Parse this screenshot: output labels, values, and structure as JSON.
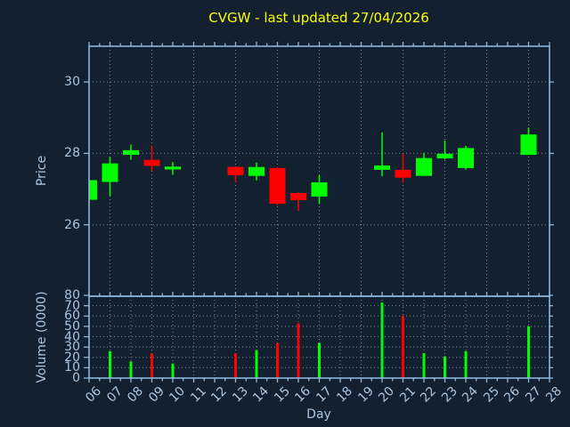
{
  "title": "CVGW - last updated 27/04/2026",
  "xlabel": "Day",
  "x_tick_labels": [
    "06",
    "07",
    "08",
    "09",
    "10",
    "11",
    "12",
    "13",
    "14",
    "15",
    "16",
    "17",
    "18",
    "19",
    "20",
    "21",
    "22",
    "23",
    "24",
    "25",
    "26",
    "27",
    "28"
  ],
  "colors": {
    "background": "#13202f",
    "axis": "#8fb5d8",
    "tick_text": "#a9c6e2",
    "grid": "#c3ced9",
    "up": "#00ff00",
    "down": "#ff0000",
    "title": "#ffff00"
  },
  "chart_data": [
    {
      "type": "candlestick",
      "panel": "price",
      "ylabel": "Price",
      "ylim": [
        24.0,
        31.0
      ],
      "yticks": [
        26,
        28,
        30
      ],
      "grid": "on",
      "x_range_days": [
        6,
        28
      ],
      "x_grid_days": [
        7,
        9,
        11,
        13,
        15,
        17,
        19,
        21,
        23,
        25,
        27
      ],
      "ohlc": [
        {
          "day": "06",
          "open": 26.7,
          "high": 27.25,
          "low": 26.7,
          "close": 27.25,
          "direction": "up"
        },
        {
          "day": "07",
          "open": 27.2,
          "high": 27.9,
          "low": 26.8,
          "close": 27.72,
          "direction": "up"
        },
        {
          "day": "08",
          "open": 27.96,
          "high": 28.25,
          "low": 27.82,
          "close": 28.09,
          "direction": "up"
        },
        {
          "day": "09",
          "open": 27.82,
          "high": 28.22,
          "low": 27.5,
          "close": 27.65,
          "direction": "down"
        },
        {
          "day": "10",
          "open": 27.55,
          "high": 27.76,
          "low": 27.4,
          "close": 27.63,
          "direction": "up"
        },
        {
          "day": "13",
          "open": 27.62,
          "high": 27.64,
          "low": 27.19,
          "close": 27.39,
          "direction": "down"
        },
        {
          "day": "14",
          "open": 27.37,
          "high": 27.74,
          "low": 27.24,
          "close": 27.62,
          "direction": "up"
        },
        {
          "day": "15",
          "open": 27.59,
          "high": 27.62,
          "low": 26.55,
          "close": 26.59,
          "direction": "down"
        },
        {
          "day": "16",
          "open": 26.89,
          "high": 26.91,
          "low": 26.39,
          "close": 26.69,
          "direction": "down"
        },
        {
          "day": "17",
          "open": 26.79,
          "high": 27.39,
          "low": 26.58,
          "close": 27.19,
          "direction": "up"
        },
        {
          "day": "20",
          "open": 27.54,
          "high": 28.59,
          "low": 27.36,
          "close": 27.66,
          "direction": "up"
        },
        {
          "day": "21",
          "open": 27.54,
          "high": 27.99,
          "low": 27.19,
          "close": 27.32,
          "direction": "down"
        },
        {
          "day": "22",
          "open": 27.37,
          "high": 28.02,
          "low": 27.37,
          "close": 27.87,
          "direction": "up"
        },
        {
          "day": "23",
          "open": 27.86,
          "high": 28.36,
          "low": 27.83,
          "close": 27.99,
          "direction": "up"
        },
        {
          "day": "24",
          "open": 27.59,
          "high": 28.21,
          "low": 27.55,
          "close": 28.15,
          "direction": "up"
        },
        {
          "day": "27",
          "open": 27.96,
          "high": 28.72,
          "low": 27.96,
          "close": 28.53,
          "direction": "up"
        }
      ]
    },
    {
      "type": "bar",
      "panel": "volume",
      "ylabel": "Volume (0000)",
      "ylim": [
        0,
        80
      ],
      "yticks": [
        0,
        10,
        20,
        30,
        40,
        50,
        60,
        70,
        80
      ],
      "grid": "on",
      "x_grid_days": [
        7,
        8,
        9,
        10,
        11,
        12,
        13,
        14,
        15,
        16,
        17,
        18,
        19,
        20,
        21,
        22,
        23,
        24,
        25,
        26,
        27
      ],
      "bars": [
        {
          "day": "07",
          "value": 26,
          "direction": "up"
        },
        {
          "day": "08",
          "value": 16,
          "direction": "up"
        },
        {
          "day": "09",
          "value": 24,
          "direction": "down"
        },
        {
          "day": "10",
          "value": 14,
          "direction": "up"
        },
        {
          "day": "13",
          "value": 24,
          "direction": "down"
        },
        {
          "day": "14",
          "value": 27,
          "direction": "up"
        },
        {
          "day": "15",
          "value": 34,
          "direction": "down"
        },
        {
          "day": "16",
          "value": 53,
          "direction": "down"
        },
        {
          "day": "17",
          "value": 34,
          "direction": "up"
        },
        {
          "day": "20",
          "value": 73,
          "direction": "up"
        },
        {
          "day": "21",
          "value": 60,
          "direction": "down"
        },
        {
          "day": "22",
          "value": 24,
          "direction": "up"
        },
        {
          "day": "23",
          "value": 21,
          "direction": "up"
        },
        {
          "day": "24",
          "value": 26,
          "direction": "up"
        },
        {
          "day": "27",
          "value": 50,
          "direction": "up"
        }
      ]
    }
  ]
}
